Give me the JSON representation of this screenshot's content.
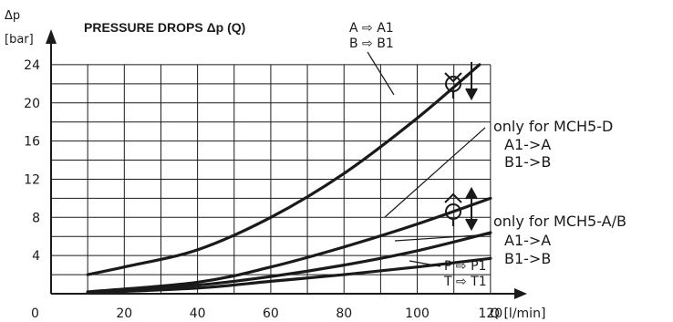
{
  "chart_data": {
    "type": "line",
    "title": "PRESSURE DROPS  Δp (Q)",
    "ylabel_symbol": "Δp",
    "ylabel_unit": "[bar]",
    "xlabel": "Q [l/min]",
    "origin_label": "0",
    "xlim": [
      0,
      130
    ],
    "ylim": [
      0,
      26
    ],
    "xticks": [
      20,
      40,
      60,
      80,
      100,
      120
    ],
    "yticks": [
      4,
      8,
      12,
      16,
      20,
      24
    ],
    "grid": true,
    "series": [
      {
        "name": "A ⇨ A1 / B ⇨ B1",
        "x": [
          10,
          20,
          40,
          60,
          80,
          100,
          117
        ],
        "y": [
          2.0,
          2.8,
          4.6,
          8.0,
          12.6,
          18.4,
          24.0
        ]
      },
      {
        "name": "only for MCH5-D",
        "x": [
          10,
          40,
          60,
          80,
          100,
          120
        ],
        "y": [
          0.2,
          1.2,
          2.8,
          4.9,
          7.3,
          10.0
        ]
      },
      {
        "name": "only for MCH5-A/B",
        "x": [
          10,
          40,
          60,
          80,
          100,
          120
        ],
        "y": [
          0.1,
          0.9,
          1.8,
          3.0,
          4.5,
          6.4
        ]
      },
      {
        "name": "P ⇨ P1 / T ⇨ T1",
        "x": [
          10,
          40,
          60,
          80,
          100,
          120
        ],
        "y": [
          0.1,
          0.6,
          1.3,
          2.0,
          2.8,
          3.7
        ]
      }
    ],
    "annotations": {
      "a_a1": "A ⇨ A1",
      "b_b1": "B ⇨ B1",
      "p_p1": "P ⇨ P1",
      "t_t1": "T ⇨ T1",
      "mch5d": "only for MCH5-D",
      "mch5d_line1": "A1->A",
      "mch5d_line2": "B1->B",
      "mch5ab": "only for MCH5-A/B",
      "mch5ab_line1": "A1->A",
      "mch5ab_line2": "B1->B"
    }
  }
}
